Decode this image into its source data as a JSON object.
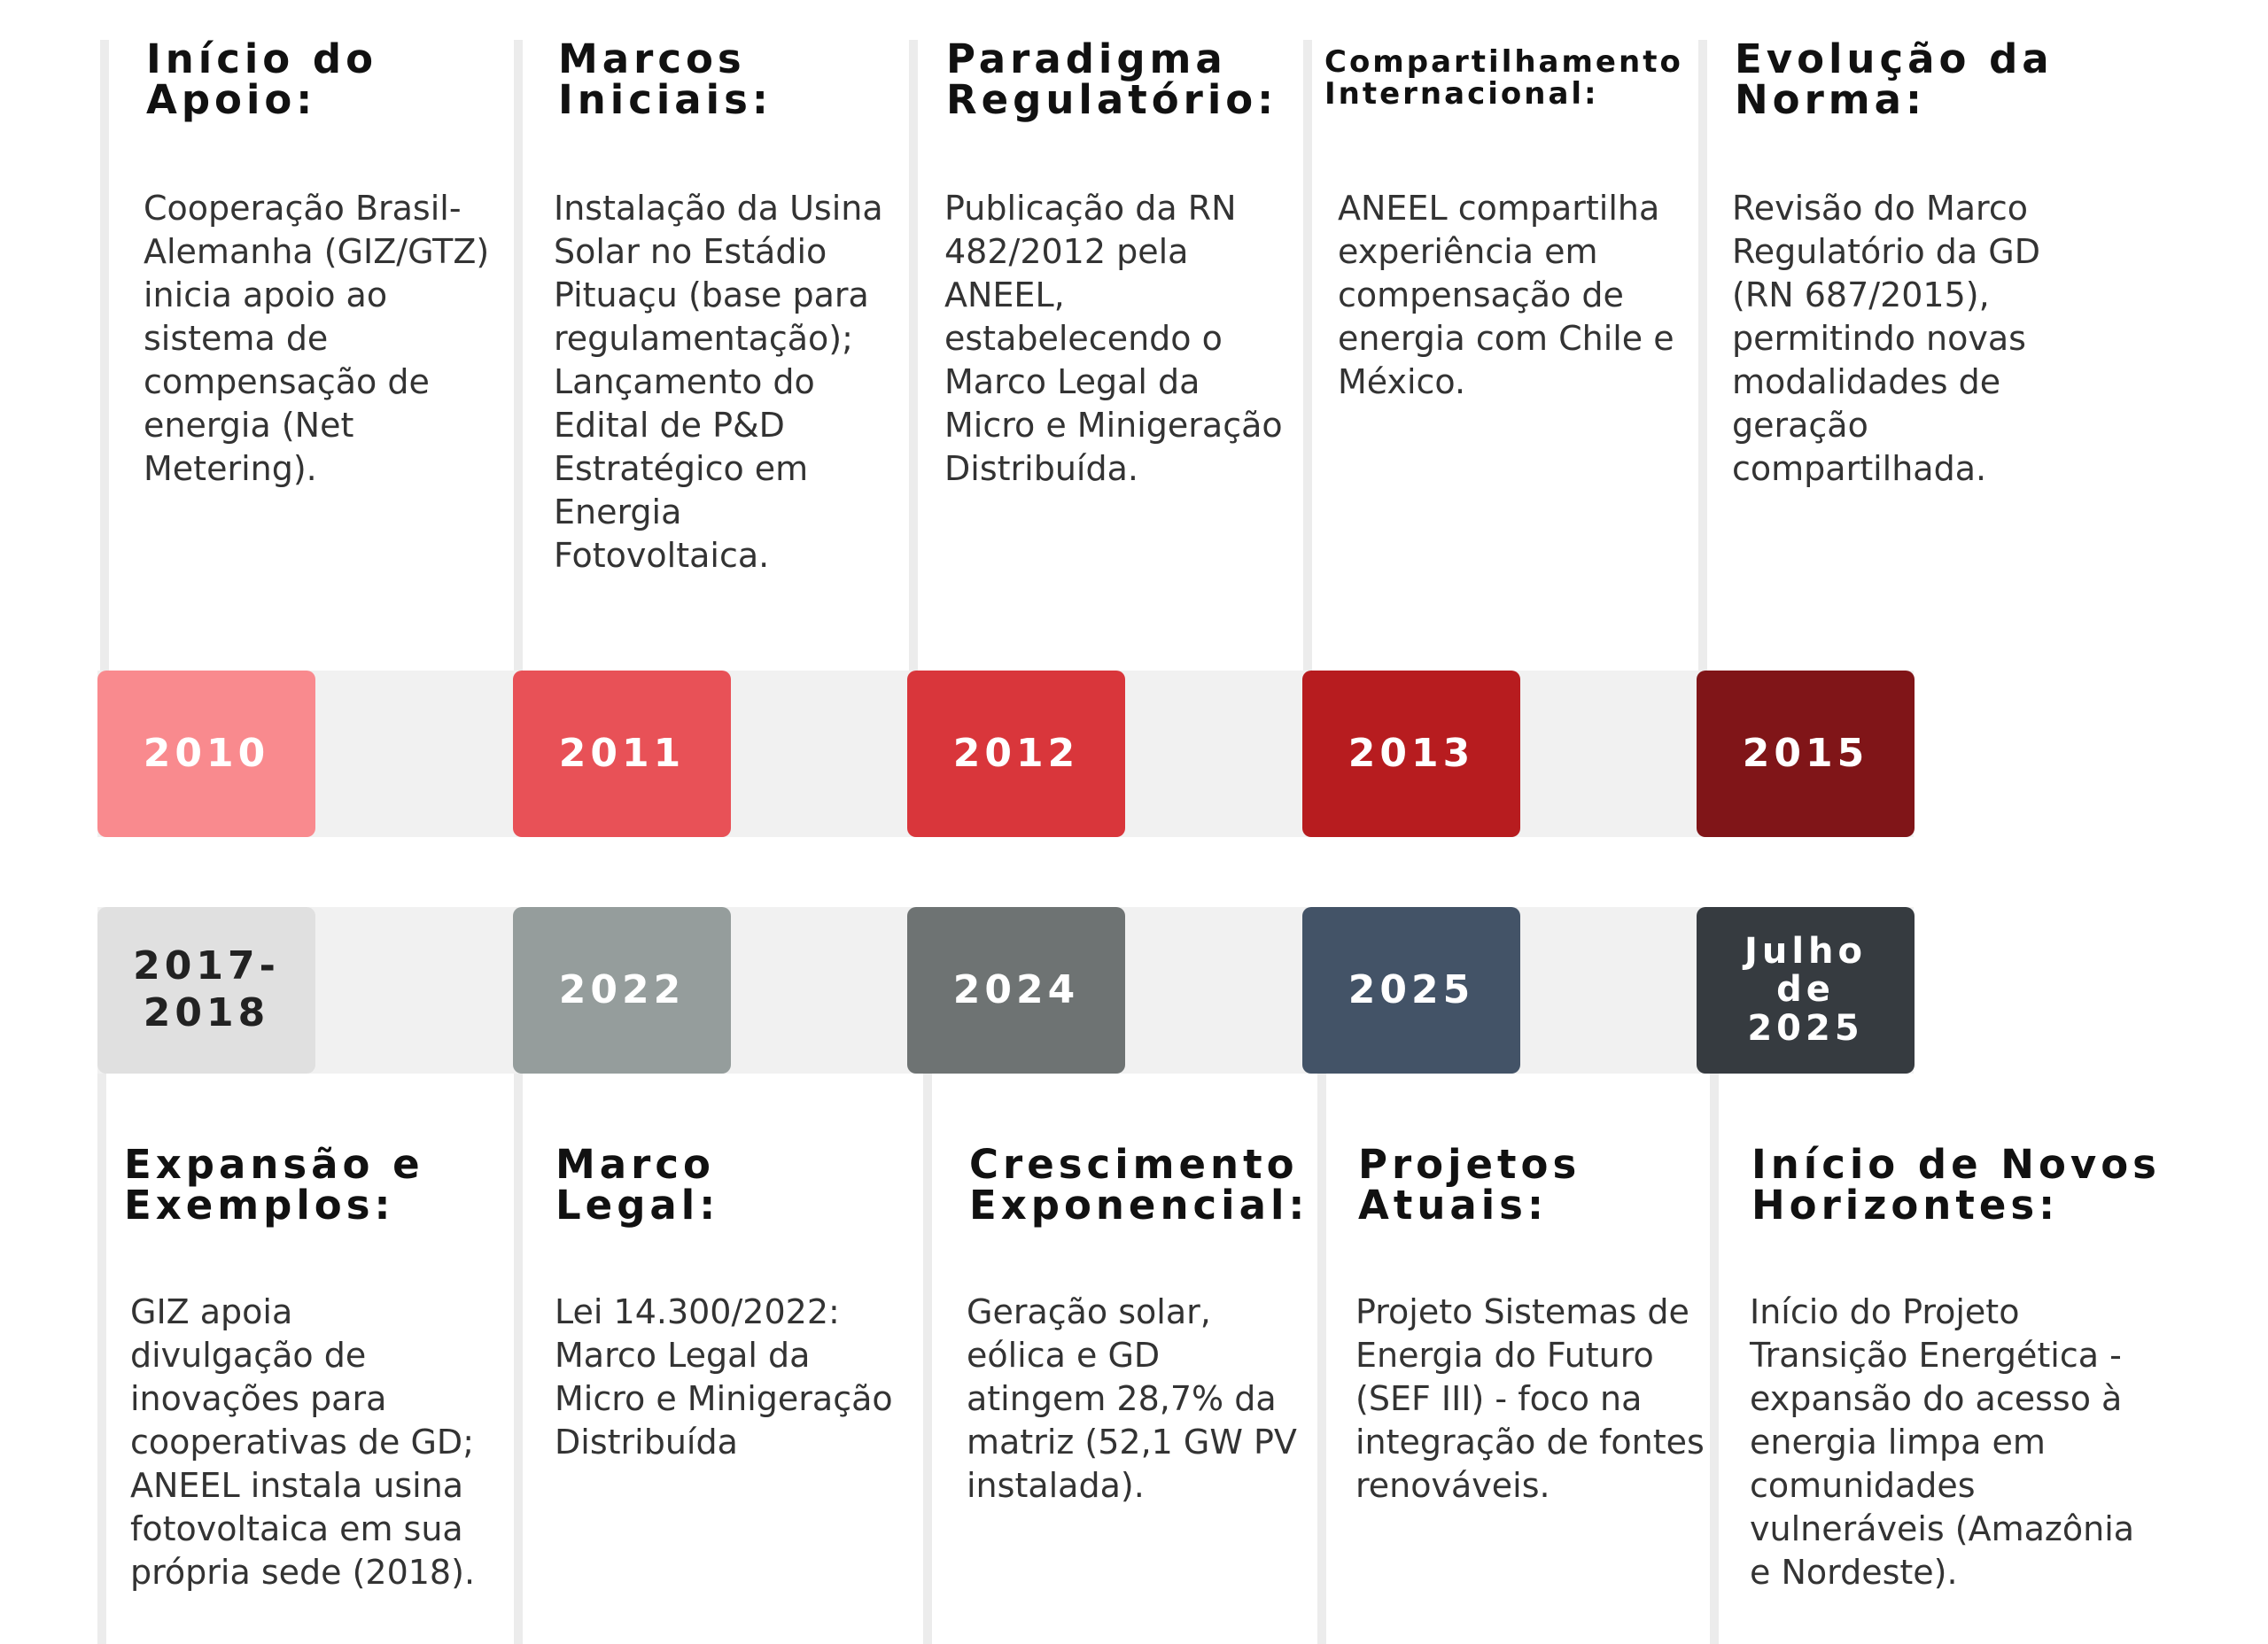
{
  "colors": {
    "y2010": "#f98a8e",
    "y2011": "#e85157",
    "y2012": "#d9363b",
    "y2013": "#b71c1f",
    "y2015": "#801518",
    "y2017": "#e0e0e0",
    "y2022": "#959d9c",
    "y2024": "#6e7373",
    "y2025": "#435367",
    "y2025b": "#363b40"
  },
  "top": [
    {
      "year": "2010",
      "heading": "Início do Apoio:",
      "desc": "Cooperação Brasil-Alemanha (GIZ/GTZ) inicia apoio ao sistema de compensação de energia (Net Metering)."
    },
    {
      "year": "2011",
      "heading": "Marcos Iniciais:",
      "desc": "Instalação da Usina Solar no Estádio Pituaçu (base para regulamentação); Lançamento do Edital de P&D Estratégico em Energia Fotovoltaica."
    },
    {
      "year": "2012",
      "heading": "Paradigma Regulatório:",
      "desc": "Publicação da RN 482/2012 pela ANEEL, estabelecendo o Marco Legal da Micro e Minigeração Distribuída."
    },
    {
      "year": "2013",
      "heading": "Compartilhamento Internacional:",
      "desc": "ANEEL compartilha experiência em compensação de energia com Chile e México."
    },
    {
      "year": "2015",
      "heading": "Evolução da Norma:",
      "desc": "Revisão do Marco Regulatório da GD (RN 687/2015), permitindo novas modalidades de geração compartilhada."
    }
  ],
  "bottom": [
    {
      "year": "2017-2018",
      "heading": "Expansão e Exemplos:",
      "desc": "GIZ apoia divulgação de inovações para cooperativas de GD; ANEEL instala usina fotovoltaica em sua própria sede (2018)."
    },
    {
      "year": "2022",
      "heading": "Marco Legal:",
      "desc": "Lei 14.300/2022: Marco Legal da Micro e Minigeração Distribuída"
    },
    {
      "year": "2024",
      "heading": "Crescimento Exponencial:",
      "desc": "Geração solar, eólica e GD atingem 28,7% da matriz (52,1 GW PV instalada)."
    },
    {
      "year": "2025",
      "heading": "Projetos Atuais:",
      "desc": "Projeto Sistemas de Energia do Futuro (SEF III) - foco na integração de fontes renováveis."
    },
    {
      "year": "Julho de 2025",
      "heading": "Início de Novos Horizontes:",
      "desc": "Início do Projeto Transição Energética - expansão do acesso à energia limpa em comunidades vulneráveis (Amazônia e Nordeste)."
    }
  ]
}
